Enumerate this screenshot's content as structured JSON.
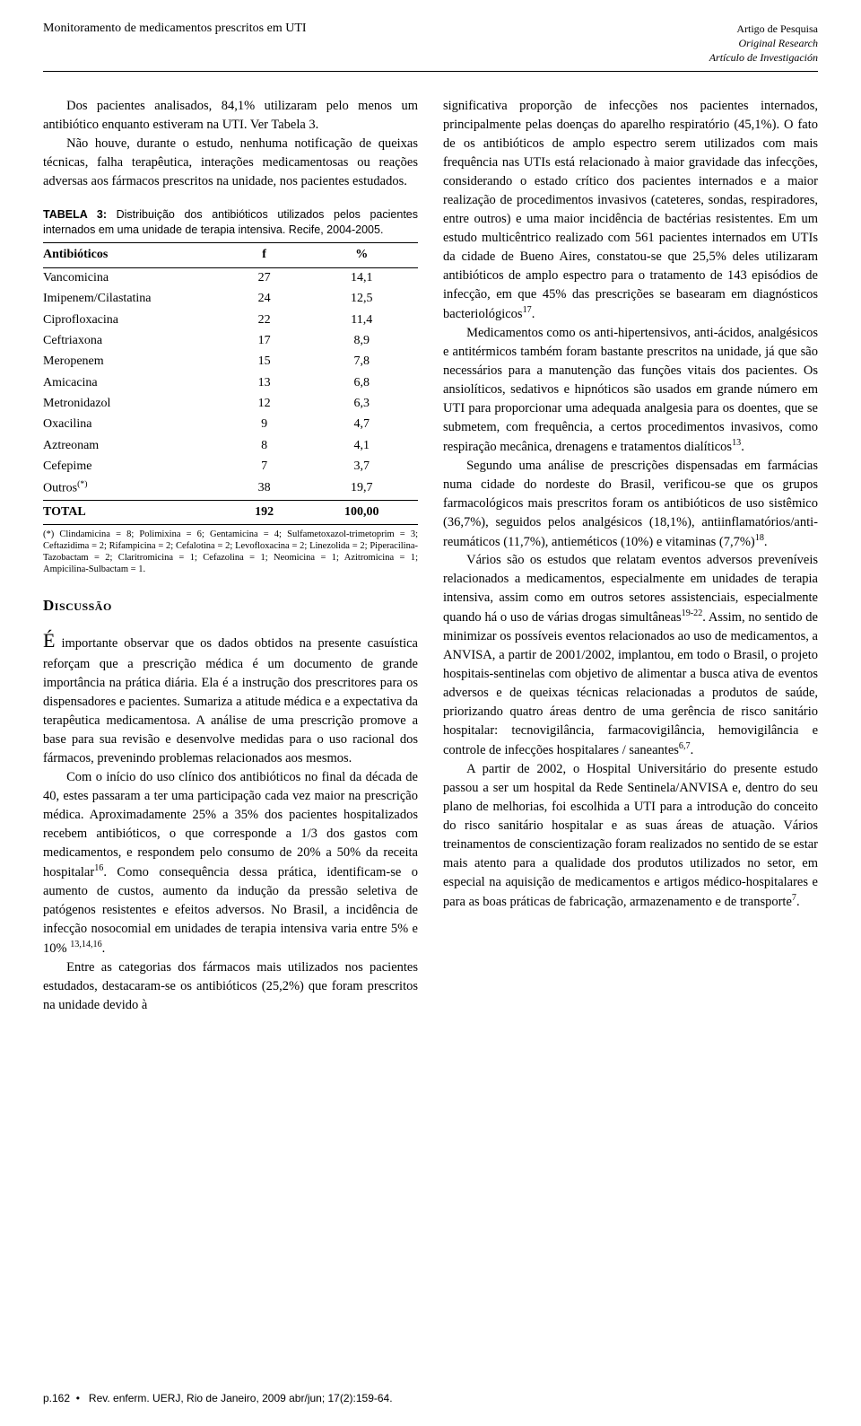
{
  "header": {
    "title_left": "Monitoramento de medicamentos prescritos em UTI",
    "right1": "Artigo de Pesquisa",
    "right2": "Original Research",
    "right3": "Artículo de Investigación"
  },
  "left": {
    "p1": "Dos pacientes analisados, 84,1% utilizaram pelo menos um antibiótico enquanto estiveram na UTI. Ver Tabela 3.",
    "p2": "Não houve, durante o estudo, nenhuma notificação de queixas técnicas, falha terapêutica, interações medicamentosas ou reações adversas aos fármacos prescritos na unidade, nos pacientes estudados.",
    "table_caption_bold": "TABELA 3:",
    "table_caption": " Distribuição dos antibióticos utilizados pelos pacientes internados em uma unidade de terapia intensiva. Recife, 2004-2005.",
    "table": {
      "columns": [
        "Antibióticos",
        "f",
        "%"
      ],
      "rows": [
        [
          "Vancomicina",
          "27",
          "14,1"
        ],
        [
          "Imipenem/Cilastatina",
          "24",
          "12,5"
        ],
        [
          "Ciprofloxacina",
          "22",
          "11,4"
        ],
        [
          "Ceftriaxona",
          "17",
          "8,9"
        ],
        [
          "Meropenem",
          "15",
          "7,8"
        ],
        [
          "Amicacina",
          "13",
          "6,8"
        ],
        [
          "Metronidazol",
          "12",
          "6,3"
        ],
        [
          "Oxacilina",
          "9",
          "4,7"
        ],
        [
          "Aztreonam",
          "8",
          "4,1"
        ],
        [
          "Cefepime",
          "7",
          "3,7"
        ],
        [
          "Outros(*)",
          "38",
          "19,7"
        ]
      ],
      "total": [
        "TOTAL",
        "192",
        "100,00"
      ]
    },
    "table_note": "(*) Clindamicina = 8; Polimixina = 6; Gentamicina = 4; Sulfametoxazol-trimetoprim = 3; Ceftazidima = 2; Rifampicina = 2; Cefalotina = 2; Levofloxacina = 2; Linezolida = 2; Piperacilina-Tazobactam = 2; Claritromicina = 1; Cefazolina = 1; Neomicina = 1; Azitromicina = 1; Ampicilina-Sulbactam = 1.",
    "section_title": "Discussão",
    "p3_lead": "É",
    "p3": " importante observar que os dados obtidos na presente casuística reforçam que a prescrição médica é um documento de grande importância na prática diária. Ela é a instrução dos prescritores para os dispensadores e pacientes. Sumariza a atitude médica e a expectativa da terapêutica medicamentosa. A análise de uma prescrição promove a base para sua revisão e desenvolve medidas para o uso racional dos fármacos, prevenindo problemas relacionados aos mesmos.",
    "p4": "Com o início do uso clínico dos antibióticos no final da década de 40, estes passaram a ter uma participação cada vez maior na prescrição médica. Aproximadamente 25% a 35% dos pacientes hospitalizados recebem antibióticos, o que corresponde a 1/3 dos gastos com medicamentos, e respondem pelo consumo de 20% a 50% da receita hospitalar",
    "p4_sup": "16",
    "p4_b": ". Como consequência dessa prática, identificam-se o aumento de custos, aumento da indução da pressão seletiva de patógenos resistentes e efeitos adversos. No Brasil, a incidência de infecção nosocomial em unidades de terapia intensiva varia entre 5% e 10% ",
    "p4_sup2": "13,14,16",
    "p4_c": ".",
    "p5": "Entre as categorias dos fármacos mais utilizados nos pacientes estudados, destacaram-se os antibióticos (25,2%) que foram prescritos na unidade devido à"
  },
  "right": {
    "p1": "significativa proporção de infecções nos pacientes internados, principalmente pelas doenças do aparelho respiratório (45,1%). O fato de os antibióticos de amplo espectro serem utilizados com mais frequência nas UTIs está relacionado à maior gravidade das infecções, considerando o estado crítico dos pacientes internados e a maior realização de procedimentos invasivos (cateteres, sondas, respiradores, entre outros) e uma maior incidência de bactérias resistentes. Em um estudo multicêntrico realizado com 561 pacientes internados em UTIs da cidade de Bueno Aires, constatou-se que 25,5% deles utilizaram antibióticos de amplo espectro para o tratamento de 143 episódios de infecção, em que 45% das prescrições se basearam em diagnósticos bacteriológicos",
    "p1_sup": "17",
    "p1_b": ".",
    "p2": "Medicamentos como os anti-hipertensivos, anti-ácidos, analgésicos e antitérmicos também foram bastante prescritos na unidade, já que são necessários para a manutenção das funções vitais dos pacientes. Os ansiolíticos, sedativos e hipnóticos são usados em grande número em UTI para proporcionar uma adequada analgesia para os doentes, que se submetem, com frequência, a certos procedimentos invasivos, como respiração mecânica, drenagens e tratamentos dialíticos",
    "p2_sup": "13",
    "p2_b": ".",
    "p3": "Segundo uma análise de prescrições dispensadas em farmácias numa cidade do nordeste do Brasil, verificou-se que os grupos farmacológicos mais prescritos foram os antibióticos de uso sistêmico (36,7%), seguidos pelos analgésicos (18,1%), antiinflamatórios/anti-reumáticos (11,7%), antieméticos (10%) e vitaminas (7,7%)",
    "p3_sup": "18",
    "p3_b": ".",
    "p4": "Vários são os estudos que relatam eventos adversos preveníveis relacionados a medicamentos, especialmente em unidades de terapia intensiva, assim como em outros setores assistenciais, especialmente quando há o uso de várias drogas simultâneas",
    "p4_sup": "19-22",
    "p4_b": ". Assim, no sentido de minimizar os possíveis eventos relacionados ao uso de medicamentos, a ANVISA, a partir de 2001/2002, implantou, em todo o Brasil, o projeto hospitais-sentinelas com objetivo de alimentar a busca ativa de eventos adversos e de queixas técnicas relacionadas a produtos de saúde, priorizando quatro áreas dentro de uma gerência de risco sanitário hospitalar: tecnovigilância, farmacovigilância, hemovigilância e controle de infecções hospitalares / saneantes",
    "p4_sup2": "6,7",
    "p4_c": ".",
    "p5": "A partir de 2002, o Hospital Universitário do presente estudo passou a ser um hospital da Rede Sentinela/ANVISA e, dentro do seu plano de melhorias, foi escolhida a UTI para a introdução do conceito do risco sanitário hospitalar e as suas áreas de atuação. Vários treinamentos de conscientização foram realizados no sentido de se estar mais atento para a qualidade dos produtos utilizados no setor, em especial na aquisição de medicamentos e artigos médico-hospitalares e para as boas práticas de fabricação, armazenamento e de transporte",
    "p5_sup": "7",
    "p5_b": "."
  },
  "footer": {
    "page": "p.162",
    "bullet": "•",
    "citation": "Rev. enferm. UERJ, Rio de Janeiro, 2009 abr/jun; 17(2):159-64."
  }
}
